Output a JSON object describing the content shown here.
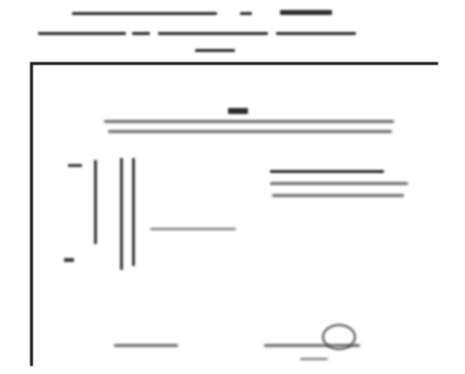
{
  "header": {
    "line1": "",
    "line2": "",
    "line3": ""
  },
  "document": {
    "emblem": "",
    "title_line1": "",
    "title_line2": "",
    "right_block": [
      "",
      "",
      ""
    ],
    "mid_note": "",
    "signature_left": "",
    "signature_right": "",
    "footer_note": ""
  }
}
